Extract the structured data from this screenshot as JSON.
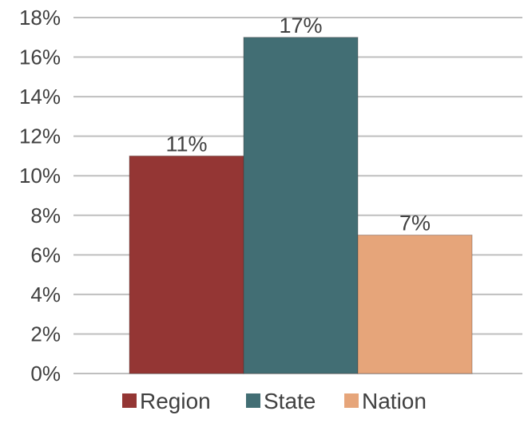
{
  "chart_data": {
    "type": "bar",
    "title": "",
    "xlabel": "",
    "ylabel": "",
    "categories": [
      "Region",
      "State",
      "Nation"
    ],
    "values": [
      11,
      17,
      7
    ],
    "data_labels": [
      "11%",
      "17%",
      "7%"
    ],
    "ylim": [
      0,
      18
    ],
    "yticks": [
      0,
      2,
      4,
      6,
      8,
      10,
      12,
      14,
      16,
      18
    ],
    "ytick_labels": [
      "0%",
      "2%",
      "4%",
      "6%",
      "8%",
      "10%",
      "12%",
      "14%",
      "16%",
      "18%"
    ],
    "grid": true,
    "legend_position": "bottom",
    "legend": [
      "Region",
      "State",
      "Nation"
    ],
    "colors": [
      "#943634",
      "#426E74",
      "#E6A57A"
    ]
  }
}
